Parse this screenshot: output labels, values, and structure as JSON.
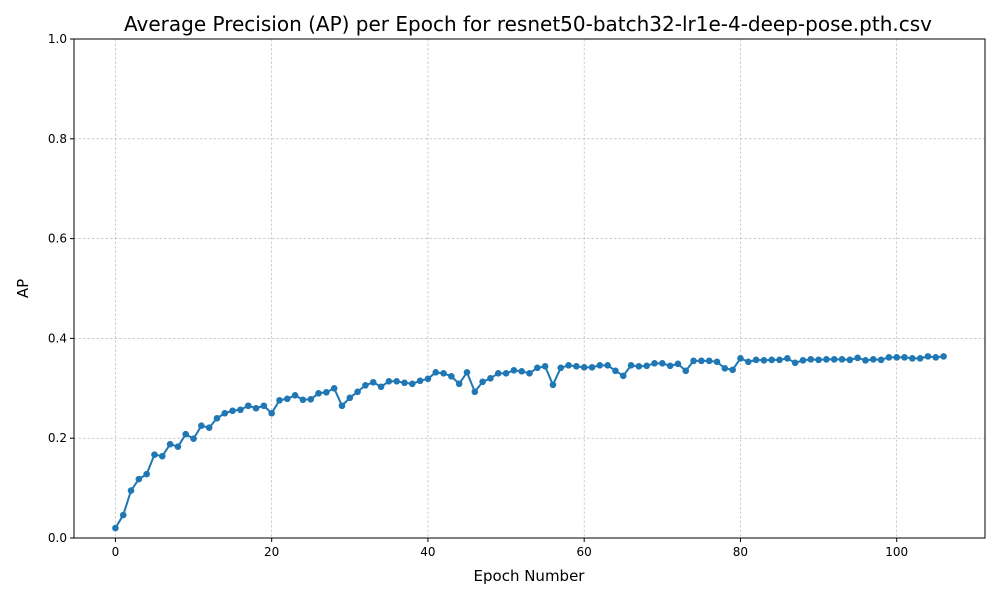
{
  "chart_data": {
    "type": "line",
    "title": "Average Precision (AP) per Epoch for resnet50-batch32-lr1e-4-deep-pose.pth.csv",
    "xlabel": "Epoch Number",
    "ylabel": "AP",
    "xlim": [
      -5.3,
      111.3
    ],
    "ylim": [
      0.0,
      1.0
    ],
    "xticks": [
      0,
      20,
      40,
      60,
      80,
      100
    ],
    "yticks": [
      0.0,
      0.2,
      0.4,
      0.6,
      0.8,
      1.0
    ],
    "xtick_labels": [
      "0",
      "20",
      "40",
      "60",
      "80",
      "100"
    ],
    "ytick_labels": [
      "0.0",
      "0.2",
      "0.4",
      "0.6",
      "0.8",
      "1.0"
    ],
    "grid": true,
    "series": [
      {
        "color": "#1f77b4",
        "marker": "circle",
        "x": [
          0,
          1,
          2,
          3,
          4,
          5,
          6,
          7,
          8,
          9,
          10,
          11,
          12,
          13,
          14,
          15,
          16,
          17,
          18,
          19,
          20,
          21,
          22,
          23,
          24,
          25,
          26,
          27,
          28,
          29,
          30,
          31,
          32,
          33,
          34,
          35,
          36,
          37,
          38,
          39,
          40,
          41,
          42,
          43,
          44,
          45,
          46,
          47,
          48,
          49,
          50,
          51,
          52,
          53,
          54,
          55,
          56,
          57,
          58,
          59,
          60,
          61,
          62,
          63,
          64,
          65,
          66,
          67,
          68,
          69,
          70,
          71,
          72,
          73,
          74,
          75,
          76,
          77,
          78,
          79,
          80,
          81,
          82,
          83,
          84,
          85,
          86,
          87,
          88,
          89,
          90,
          91,
          92,
          93,
          94,
          95,
          96,
          97,
          98,
          99,
          100,
          101,
          102,
          103,
          104,
          105,
          106
        ],
        "y": [
          0.02,
          0.046,
          0.095,
          0.118,
          0.128,
          0.167,
          0.164,
          0.188,
          0.183,
          0.208,
          0.199,
          0.225,
          0.221,
          0.24,
          0.25,
          0.255,
          0.257,
          0.265,
          0.26,
          0.265,
          0.25,
          0.276,
          0.279,
          0.286,
          0.277,
          0.278,
          0.29,
          0.292,
          0.3,
          0.265,
          0.281,
          0.293,
          0.306,
          0.312,
          0.303,
          0.314,
          0.314,
          0.311,
          0.309,
          0.315,
          0.319,
          0.332,
          0.33,
          0.324,
          0.309,
          0.332,
          0.293,
          0.313,
          0.32,
          0.33,
          0.33,
          0.336,
          0.334,
          0.33,
          0.341,
          0.344,
          0.307,
          0.341,
          0.346,
          0.344,
          0.342,
          0.342,
          0.346,
          0.346,
          0.335,
          0.325,
          0.346,
          0.344,
          0.345,
          0.35,
          0.35,
          0.345,
          0.349,
          0.335,
          0.355,
          0.355,
          0.355,
          0.353,
          0.34,
          0.337,
          0.36,
          0.353,
          0.357,
          0.356,
          0.357,
          0.357,
          0.36,
          0.351,
          0.356,
          0.358,
          0.357,
          0.358,
          0.358,
          0.358,
          0.357,
          0.361,
          0.356,
          0.358,
          0.357,
          0.362,
          0.362,
          0.362,
          0.36,
          0.36,
          0.364,
          0.362,
          0.364
        ]
      }
    ]
  }
}
